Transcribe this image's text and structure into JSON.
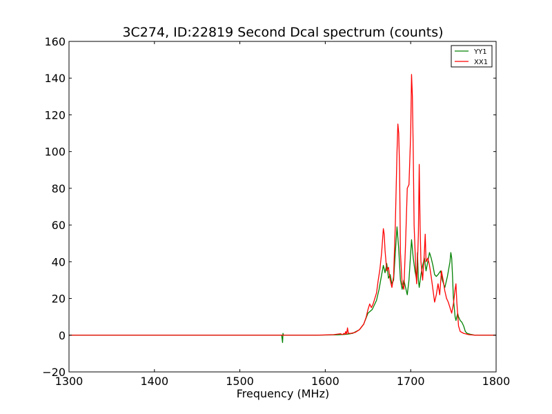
{
  "chart_data": {
    "type": "line",
    "title": "3C274, ID:22819 Second Dcal spectrum (counts)",
    "xlabel": "Frequency (MHz)",
    "ylabel": "",
    "xlim": [
      1300,
      1800
    ],
    "ylim": [
      -20,
      160
    ],
    "xticks": [
      "1300",
      "1400",
      "1500",
      "1600",
      "1700",
      "1800"
    ],
    "yticks": [
      "−20",
      "0",
      "20",
      "40",
      "60",
      "80",
      "100",
      "120",
      "140",
      "160"
    ],
    "grid": false,
    "legend_position": "top-right",
    "series": [
      {
        "name": "YY1",
        "color": "#008000",
        "points": [
          [
            1300,
            0
          ],
          [
            1549,
            0
          ],
          [
            1550,
            -4
          ],
          [
            1550.5,
            1
          ],
          [
            1551,
            0
          ],
          [
            1590,
            0
          ],
          [
            1615,
            0.2
          ],
          [
            1625,
            0.5
          ],
          [
            1632,
            1
          ],
          [
            1640,
            3
          ],
          [
            1645,
            6
          ],
          [
            1650,
            12
          ],
          [
            1655,
            14
          ],
          [
            1660,
            19
          ],
          [
            1663,
            25
          ],
          [
            1666,
            33
          ],
          [
            1668,
            38
          ],
          [
            1670,
            34
          ],
          [
            1672,
            39
          ],
          [
            1674,
            31
          ],
          [
            1676,
            33
          ],
          [
            1678,
            28
          ],
          [
            1680,
            30
          ],
          [
            1682,
            45
          ],
          [
            1684,
            59
          ],
          [
            1686,
            47
          ],
          [
            1688,
            30
          ],
          [
            1690,
            25
          ],
          [
            1692,
            30
          ],
          [
            1694,
            26
          ],
          [
            1696,
            22
          ],
          [
            1698,
            30
          ],
          [
            1700,
            45
          ],
          [
            1701,
            52
          ],
          [
            1703,
            42
          ],
          [
            1705,
            35
          ],
          [
            1707,
            30
          ],
          [
            1708,
            45
          ],
          [
            1709,
            30
          ],
          [
            1710,
            26
          ],
          [
            1712,
            33
          ],
          [
            1714,
            38
          ],
          [
            1716,
            42
          ],
          [
            1718,
            35
          ],
          [
            1720,
            40
          ],
          [
            1722,
            45
          ],
          [
            1724,
            42
          ],
          [
            1726,
            38
          ],
          [
            1728,
            33
          ],
          [
            1730,
            32
          ],
          [
            1732,
            33
          ],
          [
            1735,
            35
          ],
          [
            1737,
            30
          ],
          [
            1740,
            26
          ],
          [
            1743,
            32
          ],
          [
            1746,
            40
          ],
          [
            1747,
            45
          ],
          [
            1748,
            42
          ],
          [
            1749,
            32
          ],
          [
            1750,
            20
          ],
          [
            1752,
            10
          ],
          [
            1753,
            8
          ],
          [
            1755,
            12
          ],
          [
            1756,
            10
          ],
          [
            1758,
            8
          ],
          [
            1760,
            7
          ],
          [
            1762,
            5
          ],
          [
            1764,
            2
          ],
          [
            1766,
            1
          ],
          [
            1770,
            0.5
          ],
          [
            1775,
            0
          ],
          [
            1800,
            0
          ]
        ]
      },
      {
        "name": "XX1",
        "color": "#ff0000",
        "points": [
          [
            1300,
            0
          ],
          [
            1590,
            0
          ],
          [
            1610,
            0.3
          ],
          [
            1618,
            0.8
          ],
          [
            1620,
            0.3
          ],
          [
            1622,
            1
          ],
          [
            1623,
            0.5
          ],
          [
            1624,
            2
          ],
          [
            1625,
            0.5
          ],
          [
            1626,
            4
          ],
          [
            1627,
            1
          ],
          [
            1630,
            1
          ],
          [
            1635,
            1.5
          ],
          [
            1640,
            3
          ],
          [
            1645,
            6
          ],
          [
            1648,
            10
          ],
          [
            1650,
            14
          ],
          [
            1652,
            17
          ],
          [
            1654,
            15
          ],
          [
            1656,
            17
          ],
          [
            1658,
            20
          ],
          [
            1660,
            23
          ],
          [
            1662,
            30
          ],
          [
            1664,
            36
          ],
          [
            1666,
            45
          ],
          [
            1668,
            58
          ],
          [
            1669,
            55
          ],
          [
            1670,
            46
          ],
          [
            1672,
            35
          ],
          [
            1674,
            37
          ],
          [
            1676,
            30
          ],
          [
            1678,
            26
          ],
          [
            1680,
            32
          ],
          [
            1682,
            60
          ],
          [
            1684,
            100
          ],
          [
            1685,
            115
          ],
          [
            1686,
            110
          ],
          [
            1687,
            90
          ],
          [
            1688,
            45
          ],
          [
            1690,
            28
          ],
          [
            1692,
            25
          ],
          [
            1694,
            50
          ],
          [
            1696,
            80
          ],
          [
            1698,
            82
          ],
          [
            1700,
            110
          ],
          [
            1701,
            142
          ],
          [
            1702,
            130
          ],
          [
            1703,
            100
          ],
          [
            1704,
            60
          ],
          [
            1706,
            35
          ],
          [
            1707,
            28
          ],
          [
            1708,
            40
          ],
          [
            1709,
            55
          ],
          [
            1710,
            93
          ],
          [
            1711,
            60
          ],
          [
            1712,
            40
          ],
          [
            1714,
            30
          ],
          [
            1716,
            45
          ],
          [
            1717,
            55
          ],
          [
            1718,
            40
          ],
          [
            1720,
            42
          ],
          [
            1722,
            38
          ],
          [
            1724,
            32
          ],
          [
            1726,
            25
          ],
          [
            1728,
            18
          ],
          [
            1730,
            22
          ],
          [
            1732,
            28
          ],
          [
            1734,
            22
          ],
          [
            1736,
            35
          ],
          [
            1738,
            30
          ],
          [
            1740,
            24
          ],
          [
            1742,
            20
          ],
          [
            1744,
            18
          ],
          [
            1746,
            15
          ],
          [
            1748,
            12
          ],
          [
            1750,
            17
          ],
          [
            1752,
            25
          ],
          [
            1753,
            28
          ],
          [
            1754,
            18
          ],
          [
            1756,
            5
          ],
          [
            1758,
            2
          ],
          [
            1762,
            1
          ],
          [
            1768,
            0.3
          ],
          [
            1775,
            0
          ],
          [
            1800,
            0
          ]
        ]
      }
    ]
  }
}
